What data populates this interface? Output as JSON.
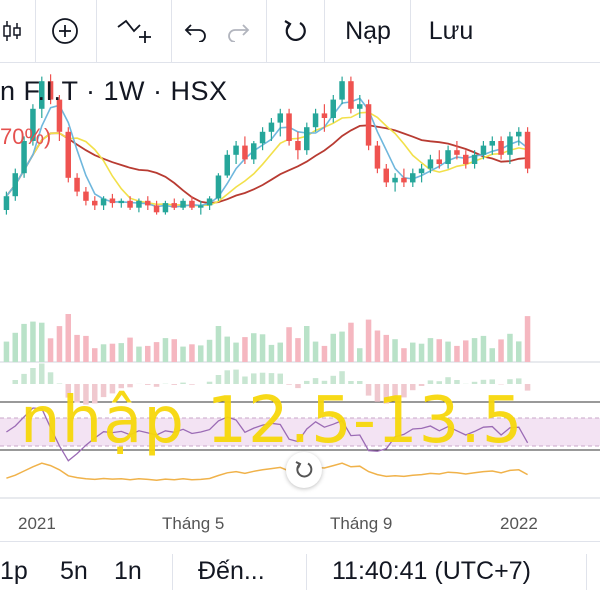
{
  "toolbar": {
    "candle_icon": "candlestick-icon",
    "add_icon": "plus-circle-icon",
    "indicator_icon": "indicator-add-icon",
    "undo_icon": "undo-icon",
    "redo_icon": "redo-icon",
    "reload_icon": "reload-icon",
    "load_label": "Nạp",
    "save_label": "Lưu"
  },
  "header": {
    "symbol_text": "n F.I.T · 1W · HSX",
    "change_pct": "70%)"
  },
  "overlay_text": "nhập 12.5-13.5",
  "x_axis": {
    "labels": [
      "2021",
      "Tháng 5",
      "Tháng 9",
      "2022"
    ]
  },
  "bottombar": {
    "intervals": [
      "1p",
      "5n",
      "1n"
    ],
    "goto_label": "Đến...",
    "clock": "11:40:41 (UTC+7)"
  },
  "colors": {
    "up": "#26a69a",
    "down": "#ef5350",
    "ma_fast": "#6fb7dd",
    "ma_mid": "#f2e04a",
    "ma_slow": "#b83b32",
    "overlay": "#f7d80b",
    "rsi_band": "#f3e3f3",
    "rsi_line": "#f0b24a"
  },
  "chart_data": {
    "type": "candlestick",
    "title": "",
    "xlabel": "",
    "ylabel": "",
    "ylim": [
      0,
      100
    ],
    "series": [
      {
        "name": "",
        "ohlc": [
          [
            40,
            48,
            38,
            46
          ],
          [
            46,
            58,
            44,
            56
          ],
          [
            56,
            72,
            54,
            70
          ],
          [
            70,
            86,
            68,
            84
          ],
          [
            84,
            98,
            80,
            96
          ],
          [
            96,
            99,
            86,
            88
          ],
          [
            88,
            90,
            70,
            74
          ],
          [
            74,
            76,
            52,
            54
          ],
          [
            54,
            56,
            46,
            48
          ],
          [
            48,
            50,
            42,
            44
          ],
          [
            44,
            46,
            40,
            42
          ],
          [
            42,
            46,
            40,
            45
          ],
          [
            45,
            47,
            41,
            43
          ],
          [
            43,
            45,
            41,
            44
          ],
          [
            44,
            46,
            40,
            41
          ],
          [
            41,
            45,
            39,
            44
          ],
          [
            44,
            46,
            40,
            42
          ],
          [
            42,
            44,
            38,
            39
          ],
          [
            39,
            44,
            38,
            43
          ],
          [
            43,
            45,
            40,
            41
          ],
          [
            41,
            45,
            40,
            44
          ],
          [
            44,
            46,
            40,
            41
          ],
          [
            41,
            44,
            38,
            42
          ],
          [
            42,
            46,
            40,
            45
          ],
          [
            45,
            56,
            44,
            55
          ],
          [
            55,
            66,
            54,
            64
          ],
          [
            64,
            70,
            60,
            68
          ],
          [
            68,
            72,
            60,
            62
          ],
          [
            62,
            70,
            60,
            69
          ],
          [
            69,
            76,
            66,
            74
          ],
          [
            74,
            80,
            70,
            78
          ],
          [
            78,
            84,
            72,
            82
          ],
          [
            82,
            84,
            68,
            70
          ],
          [
            70,
            74,
            62,
            66
          ],
          [
            66,
            78,
            64,
            76
          ],
          [
            76,
            84,
            74,
            82
          ],
          [
            82,
            86,
            74,
            80
          ],
          [
            80,
            90,
            78,
            88
          ],
          [
            88,
            98,
            86,
            96
          ],
          [
            96,
            98,
            82,
            84
          ],
          [
            84,
            90,
            80,
            86
          ],
          [
            86,
            88,
            66,
            68
          ],
          [
            68,
            70,
            56,
            58
          ],
          [
            58,
            60,
            50,
            52
          ],
          [
            52,
            56,
            48,
            54
          ],
          [
            54,
            58,
            50,
            52
          ],
          [
            52,
            58,
            50,
            56
          ],
          [
            56,
            60,
            52,
            58
          ],
          [
            58,
            64,
            56,
            62
          ],
          [
            62,
            66,
            58,
            60
          ],
          [
            60,
            68,
            58,
            66
          ],
          [
            66,
            70,
            62,
            64
          ],
          [
            64,
            66,
            58,
            60
          ],
          [
            60,
            66,
            58,
            64
          ],
          [
            64,
            70,
            62,
            68
          ],
          [
            68,
            72,
            64,
            70
          ],
          [
            70,
            72,
            62,
            64
          ],
          [
            64,
            74,
            60,
            72
          ],
          [
            72,
            76,
            68,
            74
          ],
          [
            74,
            76,
            56,
            58
          ]
        ]
      },
      {
        "name": "",
        "line": "ma_fast"
      },
      {
        "name": "",
        "line": "ma_mid"
      },
      {
        "name": "",
        "line": "ma_slow"
      }
    ]
  }
}
